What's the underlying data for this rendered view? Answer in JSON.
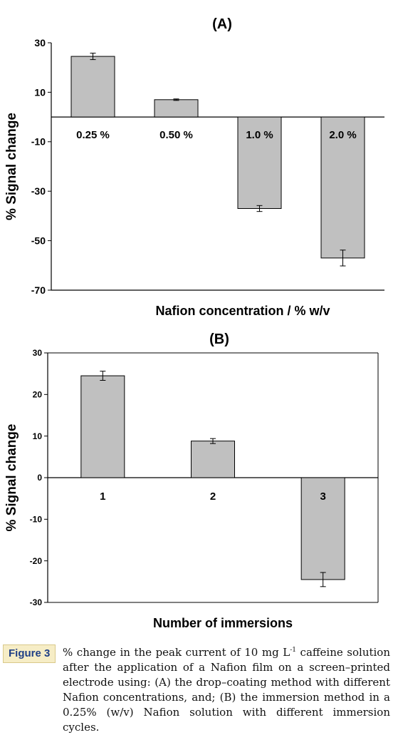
{
  "chart_data": [
    {
      "type": "bar",
      "title": "(A)",
      "xlabel": "Nafion concentration / % w/v",
      "ylabel": "% Signal change",
      "categories": [
        "0.25 %",
        "0.50 %",
        "1.0 %",
        "2.0 %"
      ],
      "values": [
        24.5,
        7,
        -37,
        -57
      ],
      "errors": [
        1.3,
        0.3,
        1.2,
        3.2
      ],
      "ylim": [
        -70,
        30
      ],
      "yticks": [
        "30",
        "10",
        "-10",
        "-30",
        "-50",
        "-70"
      ],
      "bar_color": "#c0c0c0",
      "grid": false
    },
    {
      "type": "bar",
      "title": "(B)",
      "xlabel": "Number of immersions",
      "ylabel": "% Signal change",
      "categories": [
        "1",
        "2",
        "3"
      ],
      "values": [
        24.5,
        8.8,
        -24.5
      ],
      "errors": [
        1.1,
        0.6,
        1.7
      ],
      "ylim": [
        -30,
        30
      ],
      "yticks": [
        "30",
        "20",
        "10",
        "0",
        "-10",
        "-20",
        "-30"
      ],
      "bar_color": "#c0c0c0",
      "grid": false
    }
  ],
  "caption": {
    "label": "Figure 3",
    "text_before_sup": "% change in the peak current of 10 mg L",
    "sup": "-1",
    "text_after_sup": " caffeine solution after the application of a Nafion film on a screen–printed electrode using: (A) the drop–coating method with different Nafion concentrations, and; (B) the immersion method in a 0.25% (w/v) Nafion solution with different immersion cycles."
  }
}
